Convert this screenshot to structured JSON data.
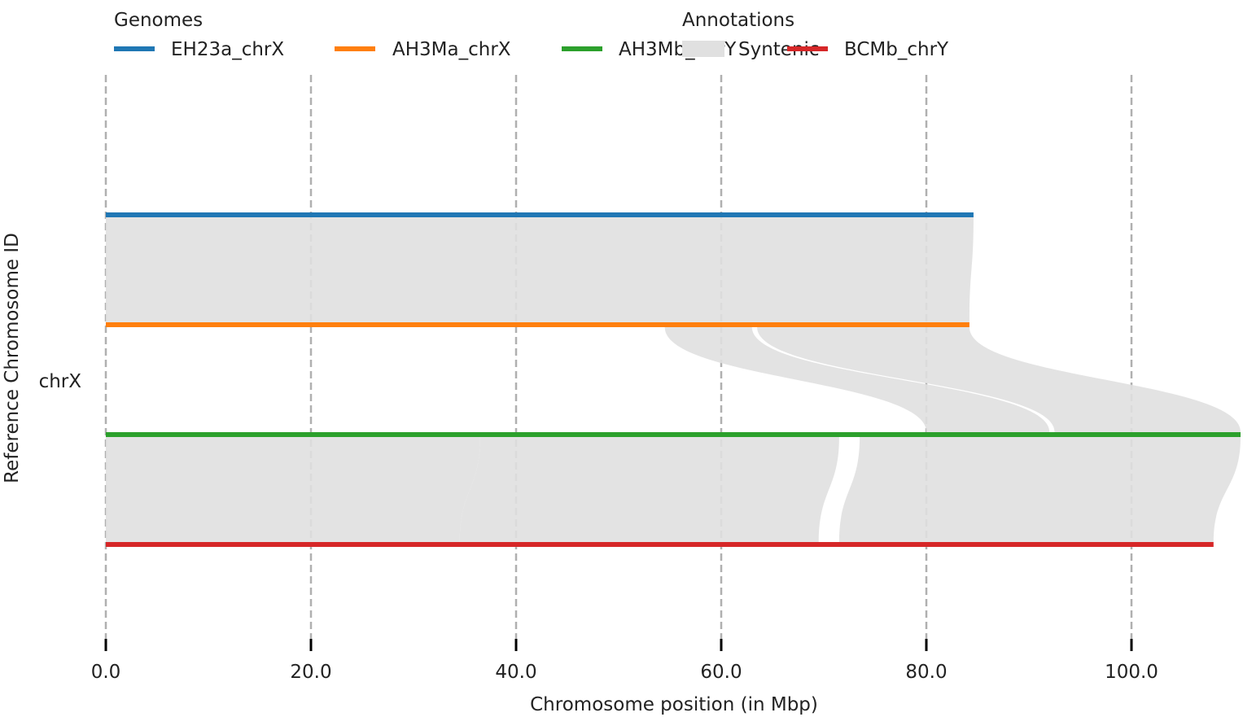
{
  "legend": {
    "genomes_title": "Genomes",
    "annotations_title": "Annotations",
    "genomes": [
      {
        "name": "EH23a_chrX",
        "color": "#1f77b4"
      },
      {
        "name": "AH3Ma_chrX",
        "color": "#ff7f0e"
      },
      {
        "name": "AH3Mb_chrY",
        "color": "#2ca02c"
      },
      {
        "name": "BCMb_chrY",
        "color": "#d62728"
      }
    ],
    "annotations": [
      {
        "name": "Syntenic",
        "color": "#e0e0e0"
      }
    ]
  },
  "chart_data": {
    "type": "synteny",
    "xlabel": "Chromosome position (in Mbp)",
    "ylabel": "Reference Chromosome ID",
    "reference_label": "chrX",
    "xlim": [
      0,
      110.5
    ],
    "xticks": [
      "0.0",
      "20.0",
      "40.0",
      "60.0",
      "80.0",
      "100.0"
    ],
    "xtick_values": [
      0,
      20,
      40,
      60,
      80,
      100
    ],
    "grid": "vertical dashed",
    "legend_position": "top",
    "chromosomes": [
      {
        "name": "EH23a_chrX",
        "start": 0,
        "end": 84.6,
        "color": "#1f77b4"
      },
      {
        "name": "AH3Ma_chrX",
        "start": 0,
        "end": 84.2,
        "color": "#ff7f0e"
      },
      {
        "name": "AH3Mb_chrY",
        "start": 0,
        "end": 110.8,
        "color": "#2ca02c"
      },
      {
        "name": "BCMb_chrY",
        "start": 0,
        "end": 108.0,
        "color": "#d62728"
      }
    ],
    "syntenic_blocks": [
      {
        "pair": [
          0,
          1
        ],
        "top": [
          0,
          84.6
        ],
        "bottom": [
          0,
          84.2
        ]
      },
      {
        "pair": [
          1,
          2
        ],
        "top": [
          54.5,
          63.0
        ],
        "bottom": [
          80.0,
          92.0
        ]
      },
      {
        "pair": [
          1,
          2
        ],
        "top": [
          63.5,
          84.2
        ],
        "bottom": [
          92.5,
          110.8
        ]
      },
      {
        "pair": [
          2,
          3
        ],
        "top": [
          0,
          36.5
        ],
        "bottom": [
          0,
          34.5
        ]
      },
      {
        "pair": [
          2,
          3
        ],
        "top": [
          36.5,
          71.5
        ],
        "bottom": [
          34.5,
          69.5
        ]
      },
      {
        "pair": [
          2,
          3
        ],
        "top": [
          73.5,
          110.8
        ],
        "bottom": [
          71.5,
          108.0
        ]
      }
    ]
  }
}
